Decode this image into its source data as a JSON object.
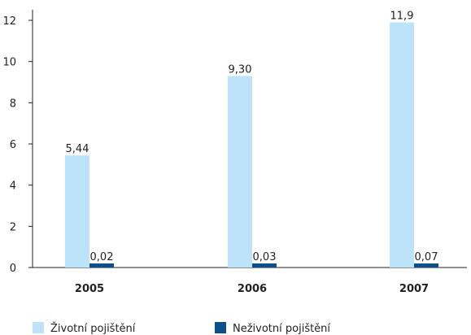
{
  "chart_data": {
    "type": "bar",
    "categories": [
      "2005",
      "2006",
      "2007"
    ],
    "series": [
      {
        "name": "Životní pojištění",
        "values": [
          5.44,
          9.3,
          11.9
        ],
        "labels": [
          "5,44",
          "9,30",
          "11,9"
        ],
        "color": "#bde3f8"
      },
      {
        "name": "Neživotní pojištění",
        "values": [
          0.02,
          0.03,
          0.07
        ],
        "labels": [
          "0,02",
          "0,03",
          "0,07"
        ],
        "color": "#0d4f8b"
      }
    ],
    "ylim": [
      0,
      12
    ],
    "yticks": [
      0,
      2,
      4,
      6,
      8,
      10,
      12
    ],
    "grid": false,
    "legend_position": "bottom",
    "title": "",
    "xlabel": "",
    "ylabel": ""
  }
}
